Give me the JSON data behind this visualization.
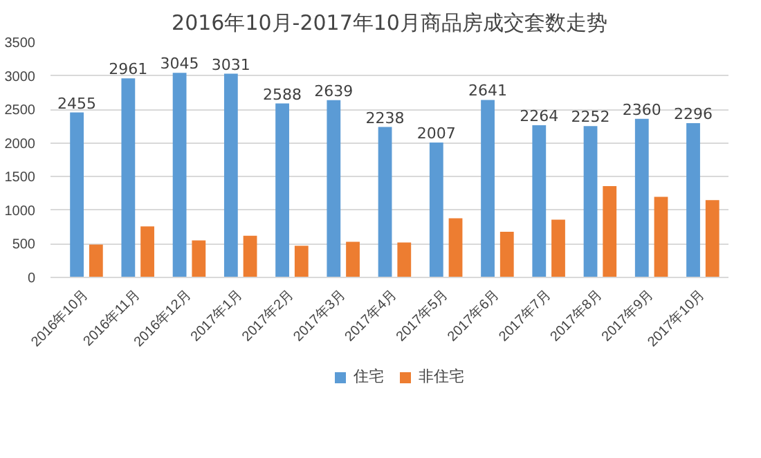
{
  "chart_data": {
    "type": "bar",
    "title": "2016年10月-2017年10月商品房成交套数走势",
    "categories": [
      "2016年10月",
      "2016年11月",
      "2016年12月",
      "2017年1月",
      "2017年2月",
      "2017年3月",
      "2017年4月",
      "2017年5月",
      "2017年6月",
      "2017年7月",
      "2017年8月",
      "2017年9月",
      "2017年10月"
    ],
    "series": [
      {
        "name": "住宅",
        "color": "#5b9bd5",
        "values": [
          2455,
          2961,
          3045,
          3031,
          2588,
          2639,
          2238,
          2007,
          2641,
          2264,
          2252,
          2360,
          2296
        ],
        "value_labels": [
          "2455",
          "2961",
          "3045",
          "3031",
          "2588",
          "2639",
          "2238",
          "2007",
          "2641",
          "2264",
          "2252",
          "2360",
          "2296"
        ]
      },
      {
        "name": "非住宅",
        "color": "#ed7d31",
        "values": [
          490,
          760,
          550,
          620,
          470,
          530,
          520,
          880,
          680,
          860,
          1360,
          1200,
          1150
        ]
      }
    ],
    "ylim": [
      0,
      3500
    ],
    "yticks": [
      0,
      500,
      1000,
      1500,
      2000,
      2500,
      3000,
      3500
    ],
    "grid": "y",
    "legend": "bottom"
  }
}
